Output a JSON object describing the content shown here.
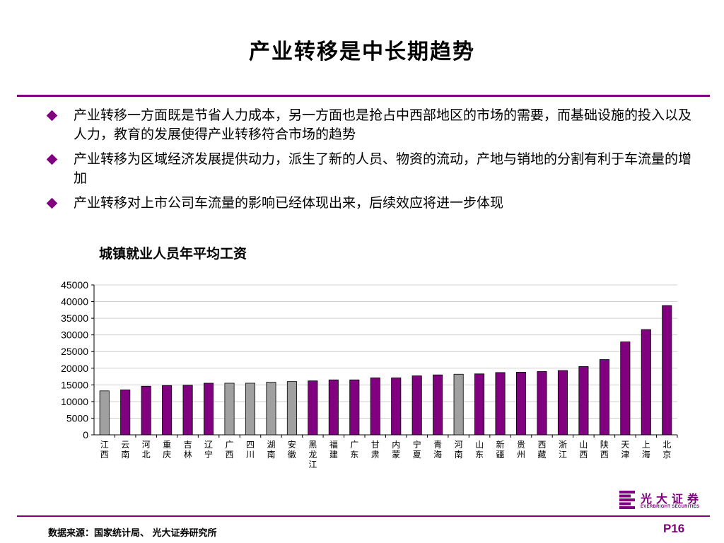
{
  "slide": {
    "title": "产业转移是中长期趋势",
    "bullets": [
      "产业转移一方面既是节省人力成本，另一方面也是抢占中西部地区的市场的需要，而基础设施的投入以及人力，教育的发展使得产业转移符合市场的趋势",
      "产业转移为区域经济发展提供动力，派生了新的人员、物资的流动，产地与销地的分割有利于车流量的增加",
      "产业转移对上市公司车流量的影响已经体现出来，后续效应将进一步体现"
    ]
  },
  "chart_data": {
    "type": "bar",
    "title": "城镇就业人员年平均工资",
    "categories": [
      "江西",
      "云南",
      "河北",
      "重庆",
      "吉林",
      "辽宁",
      "广西",
      "四川",
      "湖南",
      "安徽",
      "黑龙江",
      "福建",
      "广东",
      "甘肃",
      "内蒙",
      "宁夏",
      "青海",
      "河南",
      "山东",
      "新疆",
      "贵州",
      "西藏",
      "浙江",
      "山西",
      "陕西",
      "天津",
      "上海",
      "北京"
    ],
    "values": [
      13200,
      13500,
      14600,
      14800,
      14900,
      15500,
      15500,
      15500,
      15800,
      16000,
      16200,
      16500,
      16500,
      17100,
      17100,
      17700,
      18000,
      18200,
      18300,
      18700,
      18800,
      19000,
      19300,
      20500,
      22600,
      27900,
      31600,
      38800
    ],
    "highlighted": [
      false,
      true,
      true,
      true,
      true,
      true,
      false,
      false,
      false,
      false,
      true,
      true,
      true,
      true,
      true,
      true,
      true,
      false,
      true,
      true,
      true,
      true,
      true,
      true,
      true,
      true,
      true,
      true
    ],
    "ylim": [
      0,
      45000
    ],
    "yticks": [
      0,
      5000,
      10000,
      15000,
      20000,
      25000,
      30000,
      35000,
      40000,
      45000
    ],
    "grid": true,
    "colors": {
      "highlight": "#800080",
      "normal": "#a0a0a0"
    }
  },
  "footer": {
    "source": "数据来源：国家统计局、 光大证券研究所",
    "page": "P16",
    "logo_cn": "光大证券",
    "logo_en": "EVERBRIGHT SECURITIES"
  },
  "theme": {
    "accent": "#800080"
  }
}
